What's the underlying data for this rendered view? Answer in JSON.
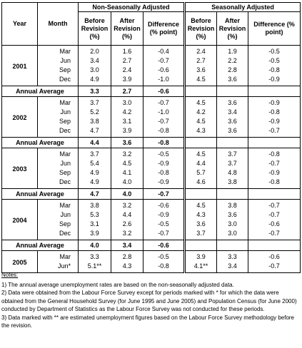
{
  "table": {
    "headers": {
      "year": "Year",
      "month": "Month",
      "groups": [
        "Non-Seasonally Adjusted",
        "Seasonally Adjusted"
      ],
      "columns": [
        "Before Revision (%)",
        "After Revision (%)",
        "Difference (% point)",
        "Before Revision (%)",
        "After Revision (%)",
        "Difference (% point)"
      ]
    },
    "years": [
      {
        "year": "2001",
        "rows": [
          [
            "Mar",
            "2.0",
            "1.6",
            "-0.4",
            "2.4",
            "1.9",
            "-0.5"
          ],
          [
            "Jun",
            "3.4",
            "2.7",
            "-0.7",
            "2.7",
            "2.2",
            "-0.5"
          ],
          [
            "Sep",
            "3.0",
            "2.4",
            "-0.6",
            "3.6",
            "2.8",
            "-0.8"
          ],
          [
            "Dec",
            "4.9",
            "3.9",
            "-1.0",
            "4.5",
            "3.6",
            "-0.9"
          ]
        ],
        "annual": {
          "label": "Annual Average",
          "values": [
            "3.3",
            "2.7",
            "-0.6"
          ]
        }
      },
      {
        "year": "2002",
        "rows": [
          [
            "Mar",
            "3.7",
            "3.0",
            "-0.7",
            "4.5",
            "3.6",
            "-0.9"
          ],
          [
            "Jun",
            "5.2",
            "4.2",
            "-1.0",
            "4.2",
            "3.4",
            "-0.8"
          ],
          [
            "Sep",
            "3.8",
            "3.1",
            "-0.7",
            "4.5",
            "3.6",
            "-0.9"
          ],
          [
            "Dec",
            "4.7",
            "3.9",
            "-0.8",
            "4.3",
            "3.6",
            "-0.7"
          ]
        ],
        "annual": {
          "label": "Annual Average",
          "values": [
            "4.4",
            "3.6",
            "-0.8"
          ]
        }
      },
      {
        "year": "2003",
        "rows": [
          [
            "Mar",
            "3.7",
            "3.2",
            "-0.5",
            "4.5",
            "3.7",
            "-0.8"
          ],
          [
            "Jun",
            "5.4",
            "4.5",
            "-0.9",
            "4.4",
            "3.7",
            "-0.7"
          ],
          [
            "Sep",
            "4.9",
            "4.1",
            "-0.8",
            "5.7",
            "4.8",
            "-0.9"
          ],
          [
            "Dec",
            "4.9",
            "4.0",
            "-0.9",
            "4.6",
            "3.8",
            "-0.8"
          ]
        ],
        "annual": {
          "label": "Annual Average",
          "values": [
            "4.7",
            "4.0",
            "-0.7"
          ]
        }
      },
      {
        "year": "2004",
        "rows": [
          [
            "Mar",
            "3.8",
            "3.2",
            "-0.6",
            "4.5",
            "3.8",
            "-0.7"
          ],
          [
            "Jun",
            "5.3",
            "4.4",
            "-0.9",
            "4.3",
            "3.6",
            "-0.7"
          ],
          [
            "Sep",
            "3.1",
            "2.6",
            "-0.5",
            "3.6",
            "3.0",
            "-0.6"
          ],
          [
            "Dec",
            "3.9",
            "3.2",
            "-0.7",
            "3.7",
            "3.0",
            "-0.7"
          ]
        ],
        "annual": {
          "label": "Annual Average",
          "values": [
            "4.0",
            "3.4",
            "-0.6"
          ]
        }
      },
      {
        "year": "2005",
        "rows": [
          [
            "Mar",
            "3.3",
            "2.8",
            "-0.5",
            "3.9",
            "3.3",
            "-0.6"
          ],
          [
            "Jun*",
            "5.1**",
            "4.3",
            "-0.8",
            "4.1**",
            "3.4",
            "-0.7"
          ]
        ]
      }
    ]
  },
  "notes": {
    "title": "Notes:",
    "items": [
      "1) The annual average unemployment rates are based on the non-seasonally adjusted data.",
      "2) Data were obtained from the Labour Force Survey except for periods marked with * for which the data were obtained from the General Household Survey (for June 1995 and June 2005) and Population Census (for June 2000) conducted by Department of Statistics as the Labour Force Survey was not conducted for these periods.",
      "3) Data marked with ** are estimated unemployment figures based on the Labour Force Survey methodology before the revision."
    ]
  }
}
